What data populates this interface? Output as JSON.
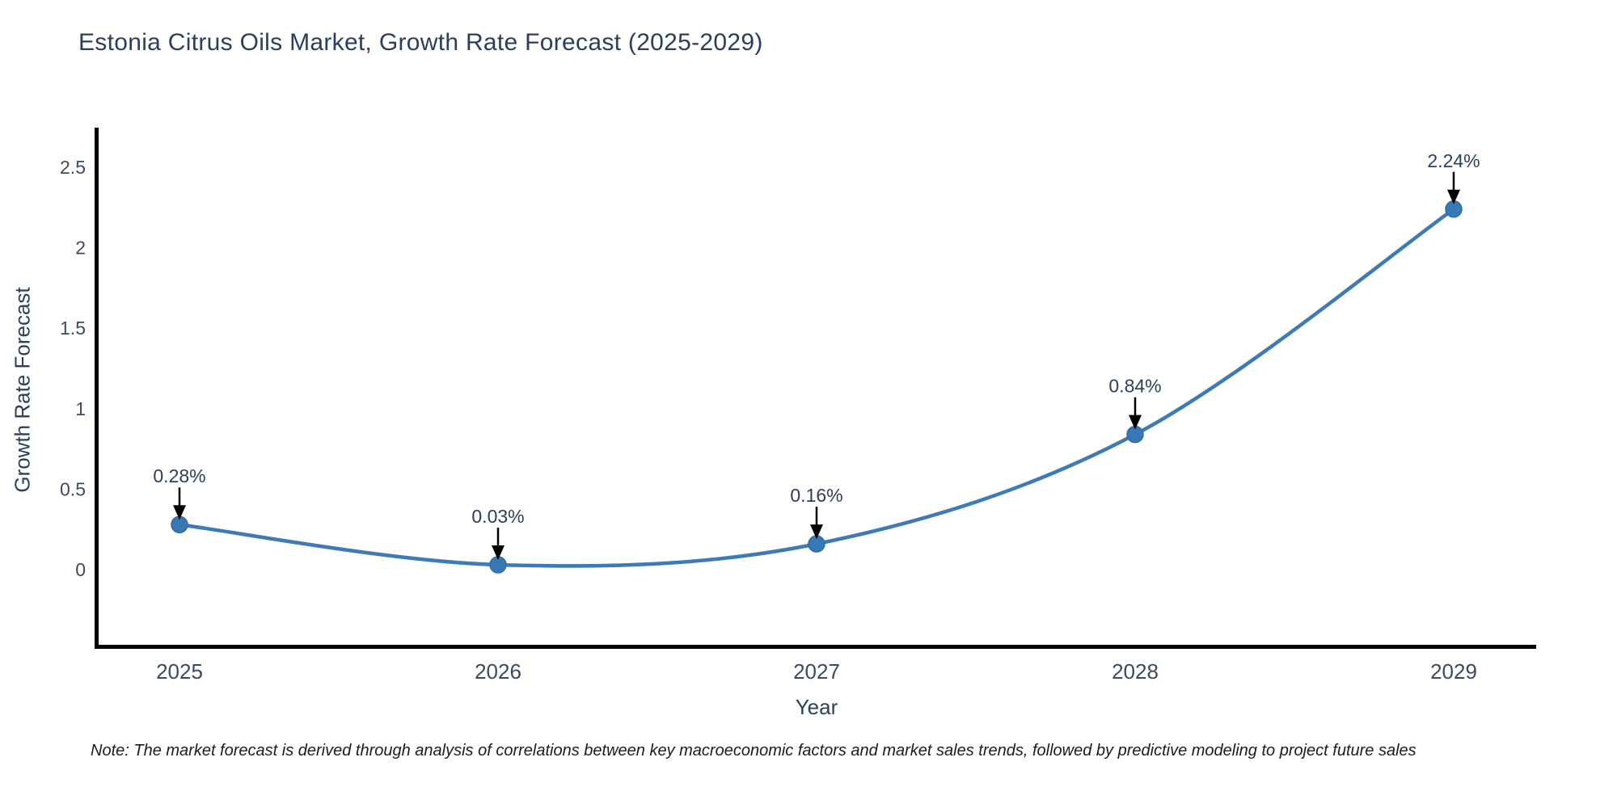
{
  "page": {
    "note": "Note: The market forecast is derived through analysis of correlations between key macroeconomic factors and market sales trends, followed by predictive modeling to project future sales"
  },
  "chart_data": {
    "type": "line",
    "title": "Estonia Citrus Oils Market, Growth Rate Forecast (2025-2029)",
    "xlabel": "Year",
    "ylabel": "Growth Rate Forecast",
    "categories": [
      "2025",
      "2026",
      "2027",
      "2028",
      "2029"
    ],
    "series": [
      {
        "name": "Growth Rate Forecast",
        "values": [
          0.28,
          0.03,
          0.16,
          0.84,
          2.24
        ]
      }
    ],
    "point_labels": [
      "0.28%",
      "0.03%",
      "0.16%",
      "0.84%",
      "2.24%"
    ],
    "yticks": [
      0,
      0.5,
      1,
      1.5,
      2,
      2.5
    ],
    "ylim": [
      -0.48,
      2.75
    ],
    "line_shape": "spline",
    "grid": false,
    "legend_position": "none",
    "annotations_have_arrows": true,
    "colors": {
      "line": "#3E7BB6",
      "marker": "#3878B4",
      "marker_edge": "#2E6DA4",
      "axis": "#000000",
      "arrow": "#000000",
      "title_text": "#2A3F5F",
      "tick_text": "#3B4A63",
      "note_text": "#1c1c1c"
    }
  }
}
